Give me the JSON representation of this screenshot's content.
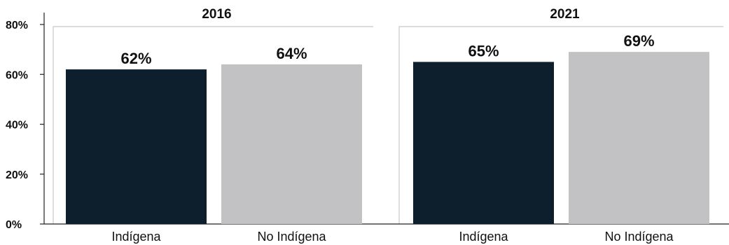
{
  "chart_data": {
    "type": "bar",
    "title": "",
    "xlabel": "",
    "ylabel": "",
    "ylim": [
      0,
      80
    ],
    "y_ticks": [
      "0%",
      "20%",
      "40%",
      "60%",
      "80%"
    ],
    "y_tick_values": [
      0,
      20,
      40,
      60,
      80
    ],
    "grid": false,
    "legend": "none",
    "categories": [
      "Indígena",
      "No Indígena"
    ],
    "colors": {
      "Indígena": "#0d1f2d",
      "No Indígena": "#c2c2c4"
    },
    "panels": [
      {
        "title": "2016",
        "categories": [
          "Indígena",
          "No Indígena"
        ],
        "values": [
          62,
          64
        ],
        "labels": [
          "62%",
          "64%"
        ]
      },
      {
        "title": "2021",
        "categories": [
          "Indígena",
          "No Indígena"
        ],
        "values": [
          65,
          69
        ],
        "labels": [
          "65%",
          "69%"
        ]
      }
    ]
  }
}
